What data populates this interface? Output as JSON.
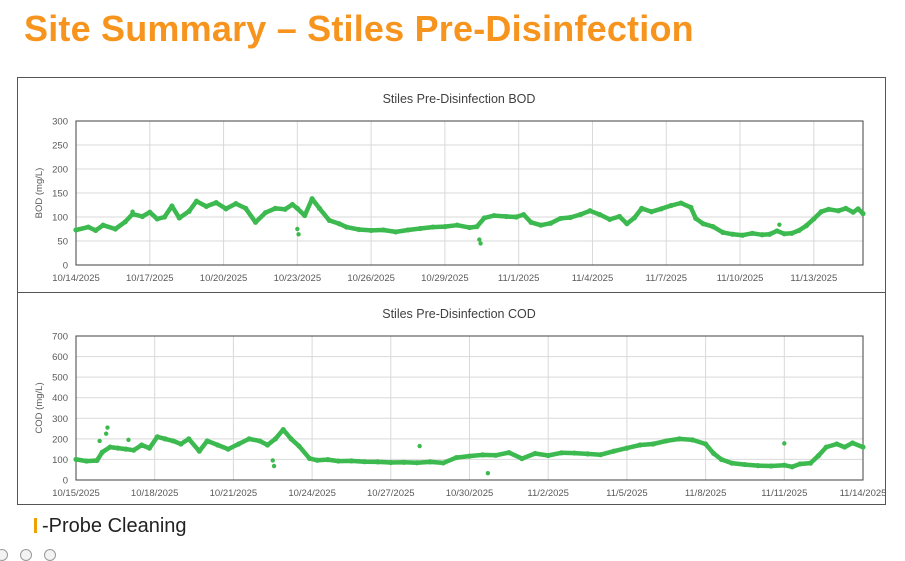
{
  "page": {
    "title": "Site Summary – Stiles Pre-Disinfection",
    "legend_label": "-Probe Cleaning",
    "accent_color": "#f7941d",
    "series_color": "#3cb94f",
    "legend_marker_color": "#f0a000"
  },
  "chart_data": [
    {
      "type": "scatter",
      "title": "Stiles Pre-Disinfection BOD",
      "xlabel": "",
      "ylabel": "BOD (mg/L)",
      "ylim": [
        0,
        300
      ],
      "yticks": [
        0,
        50,
        100,
        150,
        200,
        250,
        300
      ],
      "xlim": [
        0,
        32
      ],
      "x_units": "days since 10/14/2025",
      "xticks": [
        {
          "x": 0,
          "label": "10/14/2025"
        },
        {
          "x": 3,
          "label": "10/17/2025"
        },
        {
          "x": 6,
          "label": "10/20/2025"
        },
        {
          "x": 9,
          "label": "10/23/2025"
        },
        {
          "x": 12,
          "label": "10/26/2025"
        },
        {
          "x": 15,
          "label": "10/29/2025"
        },
        {
          "x": 18,
          "label": "11/1/2025"
        },
        {
          "x": 21,
          "label": "11/4/2025"
        },
        {
          "x": 24,
          "label": "11/7/2025"
        },
        {
          "x": 27,
          "label": "11/10/2025"
        },
        {
          "x": 30,
          "label": "11/13/2025"
        }
      ],
      "grid": true,
      "series": [
        {
          "name": "BOD",
          "points": [
            [
              0,
              73
            ],
            [
              0.5,
              79
            ],
            [
              0.8,
              72
            ],
            [
              1.1,
              83
            ],
            [
              1.6,
              75
            ],
            [
              2.0,
              90
            ],
            [
              2.3,
              106
            ],
            [
              2.7,
              101
            ],
            [
              3.0,
              110
            ],
            [
              3.3,
              96
            ],
            [
              3.6,
              100
            ],
            [
              3.9,
              123
            ],
            [
              4.2,
              98
            ],
            [
              4.6,
              112
            ],
            [
              4.9,
              133
            ],
            [
              5.3,
              122
            ],
            [
              5.7,
              130
            ],
            [
              6.1,
              117
            ],
            [
              6.5,
              128
            ],
            [
              6.9,
              118
            ],
            [
              7.3,
              89
            ],
            [
              7.7,
              109
            ],
            [
              8.1,
              118
            ],
            [
              8.5,
              116
            ],
            [
              8.8,
              126
            ],
            [
              9.0,
              118
            ],
            [
              9.3,
              103
            ],
            [
              9.6,
              138
            ],
            [
              9.9,
              118
            ],
            [
              10.3,
              93
            ],
            [
              10.7,
              86
            ],
            [
              11.0,
              79
            ],
            [
              11.5,
              74
            ],
            [
              12.0,
              72
            ],
            [
              12.5,
              73
            ],
            [
              13.0,
              69
            ],
            [
              13.5,
              73
            ],
            [
              14.0,
              76
            ],
            [
              14.5,
              79
            ],
            [
              15.0,
              80
            ],
            [
              15.5,
              83
            ],
            [
              16.0,
              78
            ],
            [
              16.3,
              80
            ],
            [
              16.6,
              98
            ],
            [
              17.0,
              103
            ],
            [
              17.5,
              101
            ],
            [
              17.9,
              100
            ],
            [
              18.2,
              105
            ],
            [
              18.5,
              89
            ],
            [
              18.9,
              83
            ],
            [
              19.3,
              87
            ],
            [
              19.7,
              97
            ],
            [
              20.1,
              99
            ],
            [
              20.5,
              105
            ],
            [
              20.9,
              113
            ],
            [
              21.3,
              105
            ],
            [
              21.7,
              95
            ],
            [
              22.1,
              101
            ],
            [
              22.4,
              86
            ],
            [
              22.7,
              98
            ],
            [
              23.0,
              118
            ],
            [
              23.4,
              111
            ],
            [
              23.8,
              117
            ],
            [
              24.2,
              124
            ],
            [
              24.6,
              129
            ],
            [
              25.0,
              120
            ],
            [
              25.2,
              97
            ],
            [
              25.5,
              86
            ],
            [
              25.9,
              80
            ],
            [
              26.3,
              68
            ],
            [
              26.7,
              64
            ],
            [
              27.1,
              62
            ],
            [
              27.5,
              66
            ],
            [
              27.9,
              63
            ],
            [
              28.2,
              64
            ],
            [
              28.5,
              71
            ],
            [
              28.8,
              65
            ],
            [
              29.1,
              66
            ],
            [
              29.4,
              72
            ],
            [
              29.7,
              82
            ],
            [
              30.0,
              96
            ],
            [
              30.3,
              111
            ],
            [
              30.6,
              116
            ],
            [
              31.0,
              113
            ],
            [
              31.3,
              118
            ],
            [
              31.6,
              110
            ],
            [
              31.8,
              117
            ],
            [
              32.0,
              107
            ]
          ]
        }
      ],
      "outliers": [
        [
          9.0,
          75
        ],
        [
          9.05,
          64
        ],
        [
          16.4,
          53
        ],
        [
          16.45,
          45
        ],
        [
          2.3,
          111
        ],
        [
          28.6,
          84
        ]
      ]
    },
    {
      "type": "scatter",
      "title": "Stiles Pre-Disinfection COD",
      "xlabel": "",
      "ylabel": "COD (mg/L)",
      "ylim": [
        0,
        700
      ],
      "yticks": [
        0,
        100,
        200,
        300,
        400,
        500,
        600,
        700
      ],
      "xlim": [
        0,
        30
      ],
      "x_units": "days since 10/15/2025",
      "xticks": [
        {
          "x": 0,
          "label": "10/15/2025"
        },
        {
          "x": 3,
          "label": "10/18/2025"
        },
        {
          "x": 6,
          "label": "10/21/2025"
        },
        {
          "x": 9,
          "label": "10/24/2025"
        },
        {
          "x": 12,
          "label": "10/27/2025"
        },
        {
          "x": 15,
          "label": "10/30/2025"
        },
        {
          "x": 18,
          "label": "11/2/2025"
        },
        {
          "x": 21,
          "label": "11/5/2025"
        },
        {
          "x": 24,
          "label": "11/8/2025"
        },
        {
          "x": 27,
          "label": "11/11/2025"
        },
        {
          "x": 30,
          "label": "11/14/2025"
        }
      ],
      "grid": true,
      "series": [
        {
          "name": "COD",
          "points": [
            [
              0,
              100
            ],
            [
              0.4,
              92
            ],
            [
              0.8,
              95
            ],
            [
              1.0,
              135
            ],
            [
              1.3,
              160
            ],
            [
              1.6,
              155
            ],
            [
              1.9,
              150
            ],
            [
              2.2,
              145
            ],
            [
              2.5,
              170
            ],
            [
              2.8,
              155
            ],
            [
              3.1,
              210
            ],
            [
              3.4,
              200
            ],
            [
              3.7,
              190
            ],
            [
              4.0,
              175
            ],
            [
              4.3,
              200
            ],
            [
              4.7,
              140
            ],
            [
              5.0,
              190
            ],
            [
              5.4,
              170
            ],
            [
              5.8,
              150
            ],
            [
              6.2,
              175
            ],
            [
              6.6,
              200
            ],
            [
              7.0,
              190
            ],
            [
              7.3,
              170
            ],
            [
              7.6,
              200
            ],
            [
              7.9,
              245
            ],
            [
              8.2,
              200
            ],
            [
              8.5,
              165
            ],
            [
              8.9,
              105
            ],
            [
              9.2,
              96
            ],
            [
              9.6,
              99
            ],
            [
              10.0,
              92
            ],
            [
              10.5,
              93
            ],
            [
              11.0,
              89
            ],
            [
              11.5,
              88
            ],
            [
              12.0,
              85
            ],
            [
              12.5,
              86
            ],
            [
              13.0,
              84
            ],
            [
              13.5,
              88
            ],
            [
              14.0,
              83
            ],
            [
              14.5,
              109
            ],
            [
              15.0,
              116
            ],
            [
              15.5,
              122
            ],
            [
              16.0,
              120
            ],
            [
              16.5,
              133
            ],
            [
              17.0,
              104
            ],
            [
              17.5,
              129
            ],
            [
              18.0,
              119
            ],
            [
              18.5,
              132
            ],
            [
              19.0,
              131
            ],
            [
              19.5,
              127
            ],
            [
              20.0,
              123
            ],
            [
              20.5,
              140
            ],
            [
              21.0,
              155
            ],
            [
              21.5,
              170
            ],
            [
              22.0,
              175
            ],
            [
              22.5,
              190
            ],
            [
              23.0,
              200
            ],
            [
              23.5,
              195
            ],
            [
              24.0,
              175
            ],
            [
              24.3,
              130
            ],
            [
              24.6,
              100
            ],
            [
              25.0,
              82
            ],
            [
              25.5,
              75
            ],
            [
              26.0,
              70
            ],
            [
              26.5,
              68
            ],
            [
              27.0,
              72
            ],
            [
              27.3,
              64
            ],
            [
              27.6,
              78
            ],
            [
              28.0,
              82
            ],
            [
              28.3,
              118
            ],
            [
              28.6,
              160
            ],
            [
              29.0,
              175
            ],
            [
              29.3,
              160
            ],
            [
              29.6,
              180
            ],
            [
              30.0,
              160
            ]
          ]
        }
      ],
      "outliers": [
        [
          1.2,
          255
        ],
        [
          1.15,
          225
        ],
        [
          2.0,
          195
        ],
        [
          7.5,
          95
        ],
        [
          7.55,
          68
        ],
        [
          13.1,
          165
        ],
        [
          15.7,
          33
        ],
        [
          27.0,
          178
        ],
        [
          0.9,
          190
        ]
      ]
    }
  ]
}
